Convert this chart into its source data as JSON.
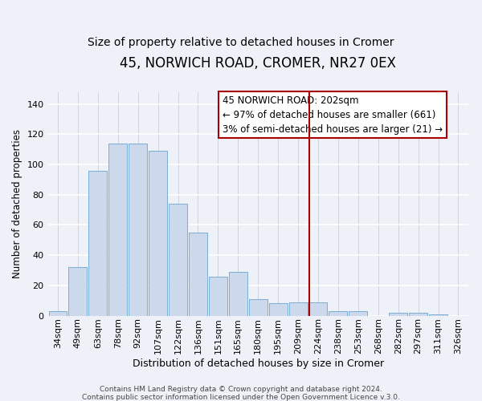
{
  "title": "45, NORWICH ROAD, CROMER, NR27 0EX",
  "subtitle": "Size of property relative to detached houses in Cromer",
  "xlabel": "Distribution of detached houses by size in Cromer",
  "ylabel": "Number of detached properties",
  "bar_labels": [
    "34sqm",
    "49sqm",
    "63sqm",
    "78sqm",
    "92sqm",
    "107sqm",
    "122sqm",
    "136sqm",
    "151sqm",
    "165sqm",
    "180sqm",
    "195sqm",
    "209sqm",
    "224sqm",
    "238sqm",
    "253sqm",
    "268sqm",
    "282sqm",
    "297sqm",
    "311sqm",
    "326sqm"
  ],
  "bar_values": [
    3,
    32,
    96,
    114,
    114,
    109,
    74,
    55,
    26,
    29,
    11,
    8,
    9,
    9,
    3,
    3,
    0,
    2,
    2,
    1,
    0
  ],
  "bar_color": "#ccd9ed",
  "bar_edge_color": "#7aadd4",
  "background_color": "#eef2f8",
  "grid_color": "#d8dde8",
  "vline_x": 12.55,
  "vline_color": "#aa0000",
  "annotation_title": "45 NORWICH ROAD: 202sqm",
  "annotation_line1": "← 97% of detached houses are smaller (661)",
  "annotation_line2": "3% of semi-detached houses are larger (21) →",
  "annotation_box_facecolor": "#ffffff",
  "annotation_box_edge": "#aa0000",
  "ylim": [
    0,
    148
  ],
  "yticks": [
    0,
    20,
    40,
    60,
    80,
    100,
    120,
    140
  ],
  "footer1": "Contains HM Land Registry data © Crown copyright and database right 2024.",
  "footer2": "Contains public sector information licensed under the Open Government Licence v.3.0.",
  "title_fontsize": 12,
  "subtitle_fontsize": 10,
  "ylabel_fontsize": 8.5,
  "xlabel_fontsize": 9,
  "tick_fontsize": 8,
  "footer_fontsize": 6.5,
  "annotation_fontsize": 8.5
}
